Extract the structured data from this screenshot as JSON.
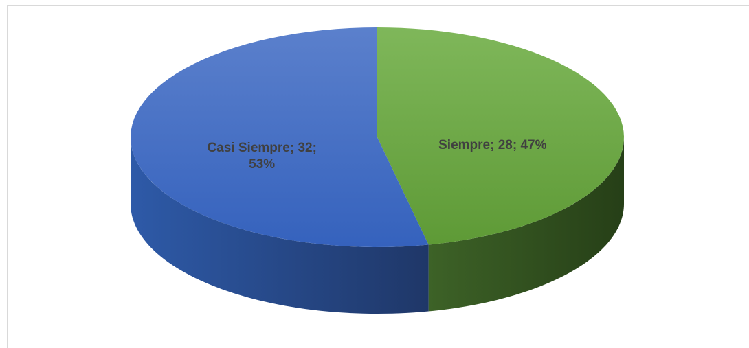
{
  "chart_data": {
    "type": "pie",
    "three_d": true,
    "values": [
      28,
      32
    ],
    "value_labels": [
      "Siempre; 28; 47%",
      "Casi Siempre; 32; 53%"
    ],
    "colors": [
      "#70ad47",
      "#4472c4"
    ]
  }
}
